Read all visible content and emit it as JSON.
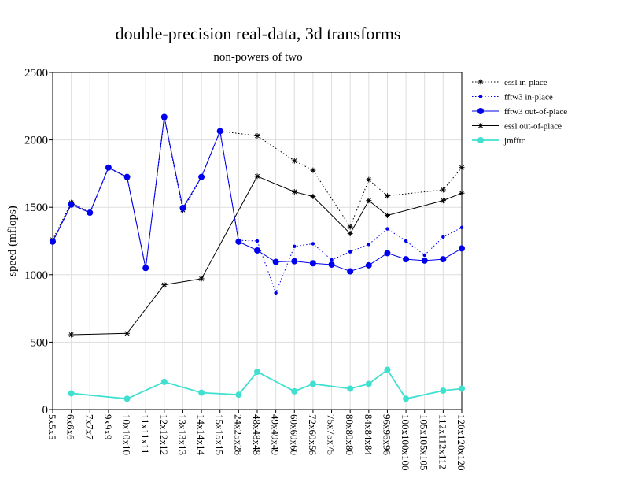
{
  "chart_data": {
    "type": "line",
    "title": "double-precision real-data, 3d transforms",
    "subtitle": "non-powers of two",
    "ylabel": "speed (mflops)",
    "xlabel": "",
    "ylim": [
      0,
      2500
    ],
    "yticks": [
      0,
      500,
      1000,
      1500,
      2000,
      2500
    ],
    "grid": true,
    "legend_position": "right",
    "categories": [
      "5x5x5",
      "6x6x6",
      "7x7x7",
      "9x9x9",
      "10x10x10",
      "11x11x11",
      "12x12x12",
      "13x13x13",
      "14x14x14",
      "15x15x15",
      "24x25x28",
      "48x48x48",
      "49x49x49",
      "60x60x60",
      "72x60x56",
      "75x75x75",
      "80x80x80",
      "84x84x84",
      "96x96x96",
      "100x100x100",
      "105x105x105",
      "112x112x112",
      "120x120x120"
    ],
    "series": [
      {
        "name": "essl in-place",
        "color": "#000000",
        "dash": "dotted",
        "marker": "star",
        "values": [
          1260,
          1535,
          1460,
          1795,
          1720,
          1050,
          2165,
          1480,
          1725,
          2065,
          null,
          2030,
          null,
          1845,
          1775,
          null,
          1355,
          1705,
          1585,
          null,
          null,
          1630,
          1795
        ]
      },
      {
        "name": "fftw3 in-place",
        "color": "#0000ee",
        "dash": "dotted",
        "marker": "smalldot",
        "values": [
          1240,
          1530,
          1455,
          1790,
          1725,
          1045,
          2165,
          1480,
          1725,
          2060,
          1255,
          1250,
          865,
          1210,
          1230,
          1110,
          1170,
          1225,
          1340,
          1250,
          1145,
          1280,
          1350
        ]
      },
      {
        "name": "fftw3 out-of-place",
        "color": "#0000ee",
        "dash": "solid",
        "marker": "dot",
        "values": [
          1245,
          1520,
          1460,
          1795,
          1725,
          1050,
          2170,
          1495,
          1725,
          2065,
          1245,
          1180,
          1095,
          1100,
          1085,
          1075,
          1025,
          1070,
          1160,
          1115,
          1105,
          1115,
          1195
        ]
      },
      {
        "name": "essl out-of-place",
        "color": "#000000",
        "dash": "solid",
        "marker": "star",
        "values": [
          null,
          555,
          null,
          null,
          565,
          null,
          925,
          null,
          970,
          null,
          null,
          1730,
          null,
          1615,
          1580,
          null,
          1305,
          1550,
          1440,
          null,
          null,
          1550,
          1605
        ]
      },
      {
        "name": "jmfftc",
        "color": "#40e0d0",
        "dash": "solid",
        "marker": "dot",
        "values": [
          null,
          120,
          null,
          null,
          80,
          null,
          205,
          null,
          125,
          null,
          110,
          280,
          null,
          135,
          190,
          null,
          155,
          190,
          295,
          80,
          null,
          140,
          155
        ]
      }
    ]
  }
}
